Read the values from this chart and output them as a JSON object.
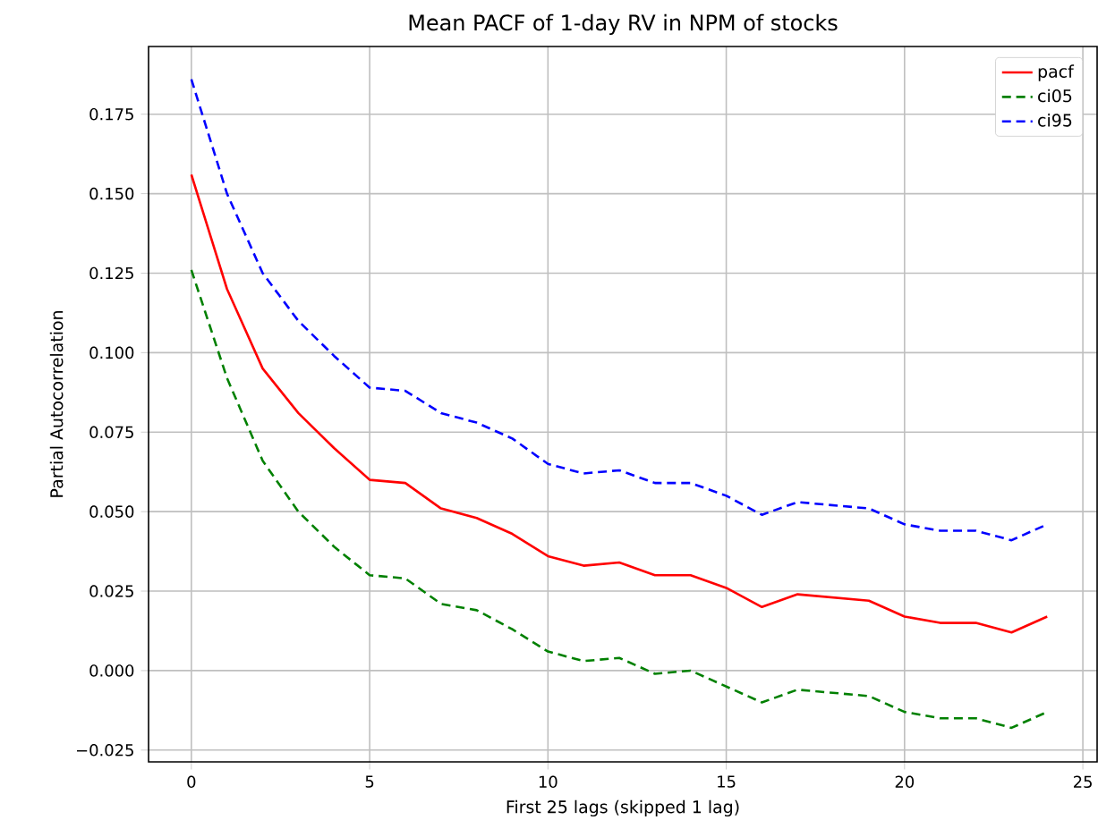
{
  "chart_data": {
    "type": "line",
    "title": "Mean PACF of 1-day RV in NPM of stocks",
    "xlabel": "First 25 lags (skipped 1 lag)",
    "ylabel": "Partial Autocorrelation",
    "x": [
      0,
      1,
      2,
      3,
      4,
      5,
      6,
      7,
      8,
      9,
      10,
      11,
      12,
      13,
      14,
      15,
      16,
      17,
      18,
      19,
      20,
      21,
      22,
      23,
      24
    ],
    "series": [
      {
        "name": "pacf",
        "color": "#ff0000",
        "line_style": "solid",
        "values": [
          0.156,
          0.12,
          0.095,
          0.081,
          0.07,
          0.06,
          0.059,
          0.051,
          0.048,
          0.043,
          0.036,
          0.033,
          0.034,
          0.03,
          0.03,
          0.026,
          0.02,
          0.024,
          0.023,
          0.022,
          0.017,
          0.015,
          0.015,
          0.012,
          0.017
        ]
      },
      {
        "name": "ci05",
        "color": "#008000",
        "line_style": "dashed",
        "values": [
          0.126,
          0.092,
          0.066,
          0.05,
          0.039,
          0.03,
          0.029,
          0.021,
          0.019,
          0.013,
          0.006,
          0.003,
          0.004,
          -0.001,
          0.0,
          -0.005,
          -0.01,
          -0.006,
          -0.007,
          -0.008,
          -0.013,
          -0.015,
          -0.015,
          -0.018,
          -0.013
        ]
      },
      {
        "name": "ci95",
        "color": "#0000ff",
        "line_style": "dashed",
        "values": [
          0.186,
          0.15,
          0.125,
          0.11,
          0.099,
          0.089,
          0.088,
          0.081,
          0.078,
          0.073,
          0.065,
          0.062,
          0.063,
          0.059,
          0.059,
          0.055,
          0.049,
          0.053,
          0.052,
          0.051,
          0.046,
          0.044,
          0.044,
          0.041,
          0.046
        ]
      }
    ],
    "xlim": [
      -1.2,
      25.4
    ],
    "ylim": [
      -0.0287,
      0.1963
    ],
    "xticks": [
      0,
      5,
      10,
      15,
      20,
      25
    ],
    "yticks": [
      {
        "value": -0.025,
        "label": "−0.025"
      },
      {
        "value": 0,
        "label": "0.000"
      },
      {
        "value": 0.025,
        "label": "0.025"
      },
      {
        "value": 0.05,
        "label": "0.050"
      },
      {
        "value": 0.075,
        "label": "0.075"
      },
      {
        "value": 0.1,
        "label": "0.100"
      },
      {
        "value": 0.125,
        "label": "0.125"
      },
      {
        "value": 0.15,
        "label": "0.150"
      },
      {
        "value": 0.175,
        "label": "0.175"
      }
    ],
    "grid": true,
    "legend": "top right",
    "marker": "none"
  }
}
